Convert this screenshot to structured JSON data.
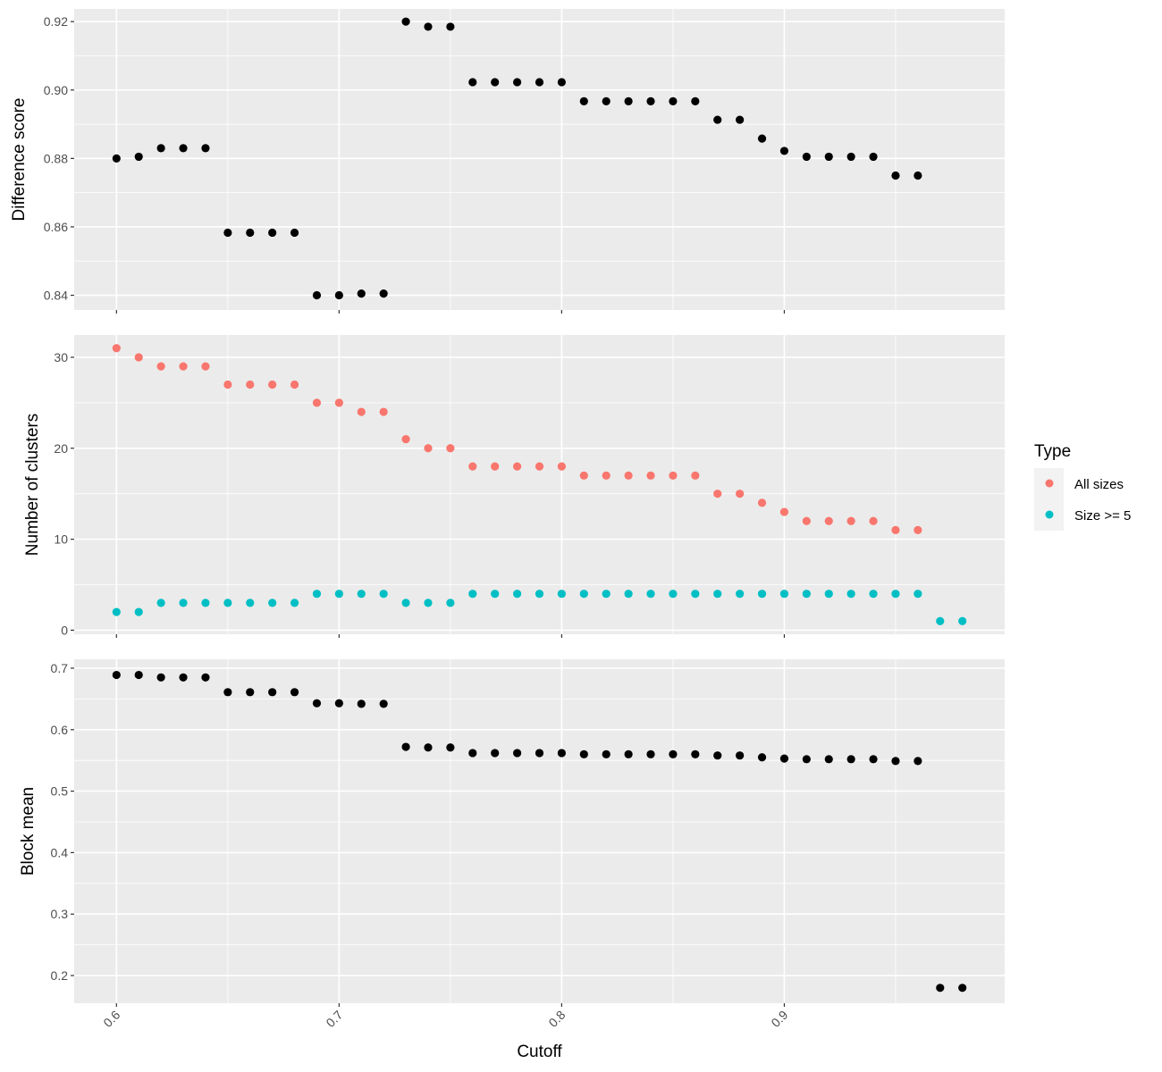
{
  "chart_data": [
    {
      "type": "scatter",
      "ylabel": "Difference score",
      "xlim": [
        0.581,
        0.999
      ],
      "ylim": [
        0.8357,
        0.9237
      ],
      "y_breaks": [
        0.84,
        0.86,
        0.88,
        0.9,
        0.92
      ],
      "y_tick_labels": [
        "0.84",
        "0.86",
        "0.88",
        "0.90",
        "0.92"
      ],
      "series": [
        {
          "color": "#000000",
          "points": [
            [
              0.6,
              0.88
            ],
            [
              0.61,
              0.8805
            ],
            [
              0.62,
              0.883
            ],
            [
              0.63,
              0.883
            ],
            [
              0.64,
              0.883
            ],
            [
              0.65,
              0.8583
            ],
            [
              0.66,
              0.8583
            ],
            [
              0.67,
              0.8583
            ],
            [
              0.68,
              0.8583
            ],
            [
              0.69,
              0.84
            ],
            [
              0.7,
              0.84
            ],
            [
              0.71,
              0.8405
            ],
            [
              0.72,
              0.8405
            ],
            [
              0.73,
              0.92
            ],
            [
              0.74,
              0.9185
            ],
            [
              0.75,
              0.9185
            ],
            [
              0.76,
              0.9023
            ],
            [
              0.77,
              0.9023
            ],
            [
              0.78,
              0.9023
            ],
            [
              0.79,
              0.9023
            ],
            [
              0.8,
              0.9023
            ],
            [
              0.81,
              0.8967
            ],
            [
              0.82,
              0.8967
            ],
            [
              0.83,
              0.8967
            ],
            [
              0.84,
              0.8967
            ],
            [
              0.85,
              0.8967
            ],
            [
              0.86,
              0.8967
            ],
            [
              0.87,
              0.8913
            ],
            [
              0.88,
              0.8913
            ],
            [
              0.89,
              0.8858
            ],
            [
              0.9,
              0.8822
            ],
            [
              0.91,
              0.8805
            ],
            [
              0.92,
              0.8805
            ],
            [
              0.93,
              0.8805
            ],
            [
              0.94,
              0.8805
            ],
            [
              0.95,
              0.875
            ],
            [
              0.96,
              0.875
            ]
          ]
        }
      ]
    },
    {
      "type": "scatter",
      "ylabel": "Number of clusters",
      "xlim": [
        0.581,
        0.999
      ],
      "ylim": [
        -0.45,
        32.45
      ],
      "y_breaks": [
        0,
        10,
        20,
        30
      ],
      "y_tick_labels": [
        "0",
        "10",
        "20",
        "30"
      ],
      "series": [
        {
          "name": "All sizes",
          "color": "#F8766D",
          "points": [
            [
              0.6,
              31
            ],
            [
              0.61,
              30
            ],
            [
              0.62,
              29
            ],
            [
              0.63,
              29
            ],
            [
              0.64,
              29
            ],
            [
              0.65,
              27
            ],
            [
              0.66,
              27
            ],
            [
              0.67,
              27
            ],
            [
              0.68,
              27
            ],
            [
              0.69,
              25
            ],
            [
              0.7,
              25
            ],
            [
              0.71,
              24
            ],
            [
              0.72,
              24
            ],
            [
              0.73,
              21
            ],
            [
              0.74,
              20
            ],
            [
              0.75,
              20
            ],
            [
              0.76,
              18
            ],
            [
              0.77,
              18
            ],
            [
              0.78,
              18
            ],
            [
              0.79,
              18
            ],
            [
              0.8,
              18
            ],
            [
              0.81,
              17
            ],
            [
              0.82,
              17
            ],
            [
              0.83,
              17
            ],
            [
              0.84,
              17
            ],
            [
              0.85,
              17
            ],
            [
              0.86,
              17
            ],
            [
              0.87,
              15
            ],
            [
              0.88,
              15
            ],
            [
              0.89,
              14
            ],
            [
              0.9,
              13
            ],
            [
              0.91,
              12
            ],
            [
              0.92,
              12
            ],
            [
              0.93,
              12
            ],
            [
              0.94,
              12
            ],
            [
              0.95,
              11
            ],
            [
              0.96,
              11
            ]
          ]
        },
        {
          "name": "Size >= 5",
          "color": "#00BFC4",
          "points": [
            [
              0.6,
              2
            ],
            [
              0.61,
              2
            ],
            [
              0.62,
              3
            ],
            [
              0.63,
              3
            ],
            [
              0.64,
              3
            ],
            [
              0.65,
              3
            ],
            [
              0.66,
              3
            ],
            [
              0.67,
              3
            ],
            [
              0.68,
              3
            ],
            [
              0.69,
              4
            ],
            [
              0.7,
              4
            ],
            [
              0.71,
              4
            ],
            [
              0.72,
              4
            ],
            [
              0.73,
              3
            ],
            [
              0.74,
              3
            ],
            [
              0.75,
              3
            ],
            [
              0.76,
              4
            ],
            [
              0.77,
              4
            ],
            [
              0.78,
              4
            ],
            [
              0.79,
              4
            ],
            [
              0.8,
              4
            ],
            [
              0.81,
              4
            ],
            [
              0.82,
              4
            ],
            [
              0.83,
              4
            ],
            [
              0.84,
              4
            ],
            [
              0.85,
              4
            ],
            [
              0.86,
              4
            ],
            [
              0.87,
              4
            ],
            [
              0.88,
              4
            ],
            [
              0.89,
              4
            ],
            [
              0.9,
              4
            ],
            [
              0.91,
              4
            ],
            [
              0.92,
              4
            ],
            [
              0.93,
              4
            ],
            [
              0.94,
              4
            ],
            [
              0.95,
              4
            ],
            [
              0.96,
              4
            ],
            [
              0.97,
              1
            ],
            [
              0.98,
              1
            ]
          ]
        }
      ]
    },
    {
      "type": "scatter",
      "ylabel": "Block mean",
      "xlabel": "Cutoff",
      "xlim": [
        0.581,
        0.999
      ],
      "ylim": [
        0.155,
        0.7145
      ],
      "y_breaks": [
        0.2,
        0.3,
        0.4,
        0.5,
        0.6,
        0.7
      ],
      "y_tick_labels": [
        "0.2",
        "0.3",
        "0.4",
        "0.5",
        "0.6",
        "0.7"
      ],
      "x_breaks": [
        0.6,
        0.7,
        0.8,
        0.9
      ],
      "x_tick_labels": [
        "0.6",
        "0.7",
        "0.8",
        "0.9"
      ],
      "series": [
        {
          "color": "#000000",
          "points": [
            [
              0.6,
              0.689
            ],
            [
              0.61,
              0.689
            ],
            [
              0.62,
              0.685
            ],
            [
              0.63,
              0.685
            ],
            [
              0.64,
              0.685
            ],
            [
              0.65,
              0.661
            ],
            [
              0.66,
              0.661
            ],
            [
              0.67,
              0.661
            ],
            [
              0.68,
              0.661
            ],
            [
              0.69,
              0.643
            ],
            [
              0.7,
              0.643
            ],
            [
              0.71,
              0.642
            ],
            [
              0.72,
              0.642
            ],
            [
              0.73,
              0.572
            ],
            [
              0.74,
              0.571
            ],
            [
              0.75,
              0.571
            ],
            [
              0.76,
              0.562
            ],
            [
              0.77,
              0.562
            ],
            [
              0.78,
              0.562
            ],
            [
              0.79,
              0.562
            ],
            [
              0.8,
              0.562
            ],
            [
              0.81,
              0.56
            ],
            [
              0.82,
              0.56
            ],
            [
              0.83,
              0.56
            ],
            [
              0.84,
              0.56
            ],
            [
              0.85,
              0.56
            ],
            [
              0.86,
              0.56
            ],
            [
              0.87,
              0.558
            ],
            [
              0.88,
              0.558
            ],
            [
              0.89,
              0.555
            ],
            [
              0.9,
              0.553
            ],
            [
              0.91,
              0.552
            ],
            [
              0.92,
              0.552
            ],
            [
              0.93,
              0.552
            ],
            [
              0.94,
              0.552
            ],
            [
              0.95,
              0.549
            ],
            [
              0.96,
              0.549
            ],
            [
              0.97,
              0.18
            ],
            [
              0.98,
              0.18
            ]
          ]
        }
      ]
    }
  ],
  "legend": {
    "title": "Type",
    "items": [
      {
        "label": "All sizes",
        "color": "#F8766D"
      },
      {
        "label": "Size >= 5",
        "color": "#00BFC4"
      }
    ]
  }
}
